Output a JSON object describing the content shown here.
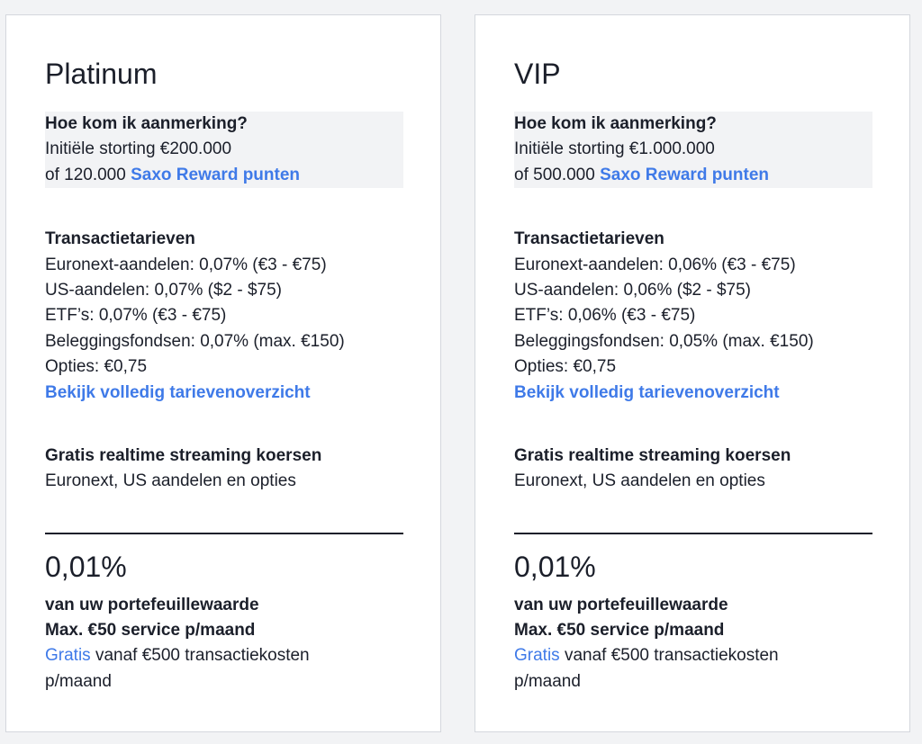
{
  "accent_color": "#3f7ae8",
  "cards": [
    {
      "title": "Platinum",
      "eligibility": {
        "heading": "Hoe kom ik aanmerking?",
        "deposit": "Initiële storting €200.000",
        "points_prefix": "of 120.000",
        "points_link": "Saxo Reward punten"
      },
      "rates": {
        "heading": "Transactietarieven",
        "items": [
          "Euronext-aandelen: 0,07% (€3 - €75)",
          "US-aandelen: 0,07% ($2 - $75)",
          "ETF’s: 0,07% (€3 - €75)",
          "Beleggingsfondsen: 0,07% (max. €150)",
          "Opties: €0,75"
        ],
        "link": "Bekijk volledig tarievenoverzicht"
      },
      "streaming": {
        "heading": "Gratis realtime streaming koersen",
        "text": "Euronext, US aandelen en opties"
      },
      "fee": {
        "value": "0,01%",
        "line1": "van uw portefeuillewaarde",
        "line2": "Max. €50 service p/maand",
        "free_link": "Gratis",
        "free_text": "vanaf €500 transactiekosten",
        "free_text2": "p/maand"
      }
    },
    {
      "title": "VIP",
      "eligibility": {
        "heading": "Hoe kom ik aanmerking?",
        "deposit": "Initiële storting €1.000.000",
        "points_prefix": "of 500.000",
        "points_link": "Saxo Reward punten"
      },
      "rates": {
        "heading": "Transactietarieven",
        "items": [
          "Euronext-aandelen: 0,06% (€3 - €75)",
          "US-aandelen: 0,06% ($2 - $75)",
          "ETF’s: 0,06% (€3 - €75)",
          "Beleggingsfondsen: 0,05% (max. €150)",
          "Opties: €0,75"
        ],
        "link": "Bekijk volledig tarievenoverzicht"
      },
      "streaming": {
        "heading": "Gratis realtime streaming koersen",
        "text": "Euronext, US aandelen en opties"
      },
      "fee": {
        "value": "0,01%",
        "line1": "van uw portefeuillewaarde",
        "line2": "Max. €50 service p/maand",
        "free_link": "Gratis",
        "free_text": "vanaf €500 transactiekosten",
        "free_text2": "p/maand"
      }
    }
  ]
}
